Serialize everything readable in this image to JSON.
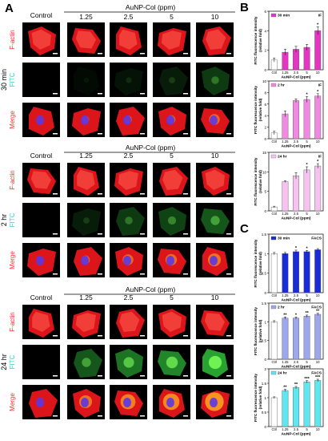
{
  "panel_a": {
    "letter": "A",
    "header": "AuNP-Col (ppm)",
    "columns": [
      "Control",
      "1.25",
      "2.5",
      "5",
      "10"
    ],
    "row_labels": [
      "F-actin",
      "FITC",
      "Merge"
    ],
    "row_label_colors": [
      "#ff2a2a",
      "#35d2c8",
      "#ff2a2a"
    ],
    "groups": [
      {
        "time": "30 min",
        "fitc_levels": [
          0.0,
          0.05,
          0.1,
          0.15,
          0.3
        ]
      },
      {
        "time": "2 hr",
        "fitc_levels": [
          0.0,
          0.15,
          0.3,
          0.35,
          0.45
        ]
      },
      {
        "time": "24 hr",
        "fitc_levels": [
          0.0,
          0.45,
          0.6,
          0.7,
          0.85
        ]
      }
    ]
  },
  "panel_b": {
    "letter": "B"
  },
  "panel_c": {
    "letter": "C"
  },
  "chart_data": [
    {
      "type": "bar",
      "panel": "B",
      "series_name": "30 min",
      "tag": "IF",
      "color": "#e535c3",
      "categories": [
        "Ctrl",
        "1.25",
        "2.5",
        "5",
        "10"
      ],
      "values": [
        1.0,
        1.8,
        2.1,
        2.3,
        4.0
      ],
      "errors": [
        0.2,
        0.3,
        0.3,
        0.3,
        0.4
      ],
      "significance": [
        "",
        "",
        "",
        "",
        "*"
      ],
      "ylim": [
        0,
        6
      ],
      "yticks": [
        0,
        2,
        4,
        6
      ],
      "ylabel": "FITC fluorescence intensity\n(relative fold)",
      "xlabel": "AuNP-Col (ppm)"
    },
    {
      "type": "bar",
      "panel": "B",
      "series_name": "2 hr",
      "tag": "IF",
      "color": "#f08ae0",
      "categories": [
        "Ctrl",
        "1.25",
        "2.5",
        "5",
        "10"
      ],
      "values": [
        1.0,
        4.3,
        6.6,
        6.8,
        7.4
      ],
      "errors": [
        0.3,
        0.5,
        0.3,
        0.5,
        0.4
      ],
      "significance": [
        "",
        "",
        "",
        "*",
        "*"
      ],
      "ylim": [
        0,
        10
      ],
      "yticks": [
        0,
        2,
        4,
        6,
        8,
        10
      ],
      "ylabel": "FITC fluorescence intensity\n(relative fold)",
      "xlabel": "AuNP-Col (ppm)"
    },
    {
      "type": "bar",
      "panel": "B",
      "series_name": "24 hr",
      "tag": "IF",
      "color": "#f7c2ef",
      "categories": [
        "Ctrl",
        "1.25",
        "2.5",
        "5",
        "10"
      ],
      "values": [
        1.0,
        7.5,
        9.0,
        10.5,
        11.5
      ],
      "errors": [
        0.2,
        0.2,
        0.8,
        0.8,
        0.6
      ],
      "significance": [
        "",
        "",
        "",
        "*",
        "*"
      ],
      "ylim": [
        0,
        15
      ],
      "yticks": [
        0,
        5,
        10,
        15
      ],
      "ylabel": "FITC fluorescence intensity\n(relative fold)",
      "xlabel": "AuNP-Col (ppm)"
    },
    {
      "type": "bar",
      "panel": "C",
      "series_name": "30 min",
      "tag": "FACS",
      "color": "#1a2bd8",
      "categories": [
        "Ctrl",
        "1.25",
        "2.5",
        "5",
        "10"
      ],
      "values": [
        1.0,
        1.0,
        1.05,
        1.05,
        1.1
      ],
      "errors": [
        0.03,
        0.03,
        0.04,
        0.03,
        0.03
      ],
      "significance": [
        "",
        "",
        "*",
        "*",
        ""
      ],
      "ylim": [
        0,
        1.5
      ],
      "yticks": [
        0,
        0.5,
        1.0,
        1.5
      ],
      "ylabel": "FITC fluorescence intensity\n(relative fold)",
      "xlabel": "AuNP-Col (ppm)"
    },
    {
      "type": "bar",
      "panel": "C",
      "series_name": "2 hr",
      "tag": "FACS",
      "color": "#9ea6ec",
      "categories": [
        "Ctrl",
        "1.25",
        "2.5",
        "5",
        "10"
      ],
      "values": [
        1.0,
        1.1,
        1.1,
        1.15,
        1.2
      ],
      "errors": [
        0.03,
        0.03,
        0.03,
        0.03,
        0.03
      ],
      "significance": [
        "",
        "**",
        "*",
        "**",
        "**"
      ],
      "ylim": [
        0,
        1.5
      ],
      "yticks": [
        0,
        0.5,
        1.0,
        1.5
      ],
      "ylabel": "FITC fluorescence intensity\n(relative fold)",
      "xlabel": "AuNP-Col (ppm)"
    },
    {
      "type": "bar",
      "panel": "C",
      "series_name": "24 hr",
      "tag": "FACS",
      "color": "#5ee7ee",
      "categories": [
        "Ctrl",
        "1.25",
        "2.5",
        "5",
        "10"
      ],
      "values": [
        1.0,
        1.25,
        1.35,
        1.55,
        1.6
      ],
      "errors": [
        0.03,
        0.04,
        0.04,
        0.04,
        0.04
      ],
      "significance": [
        "",
        "**",
        "**",
        "***",
        "***"
      ],
      "ylim": [
        0,
        2.0
      ],
      "yticks": [
        0,
        0.5,
        1.0,
        1.5,
        2.0
      ],
      "ylabel": "FITC fluorescence intensity\n(relative fold)",
      "xlabel": "AuNP-Col (ppm)"
    }
  ]
}
